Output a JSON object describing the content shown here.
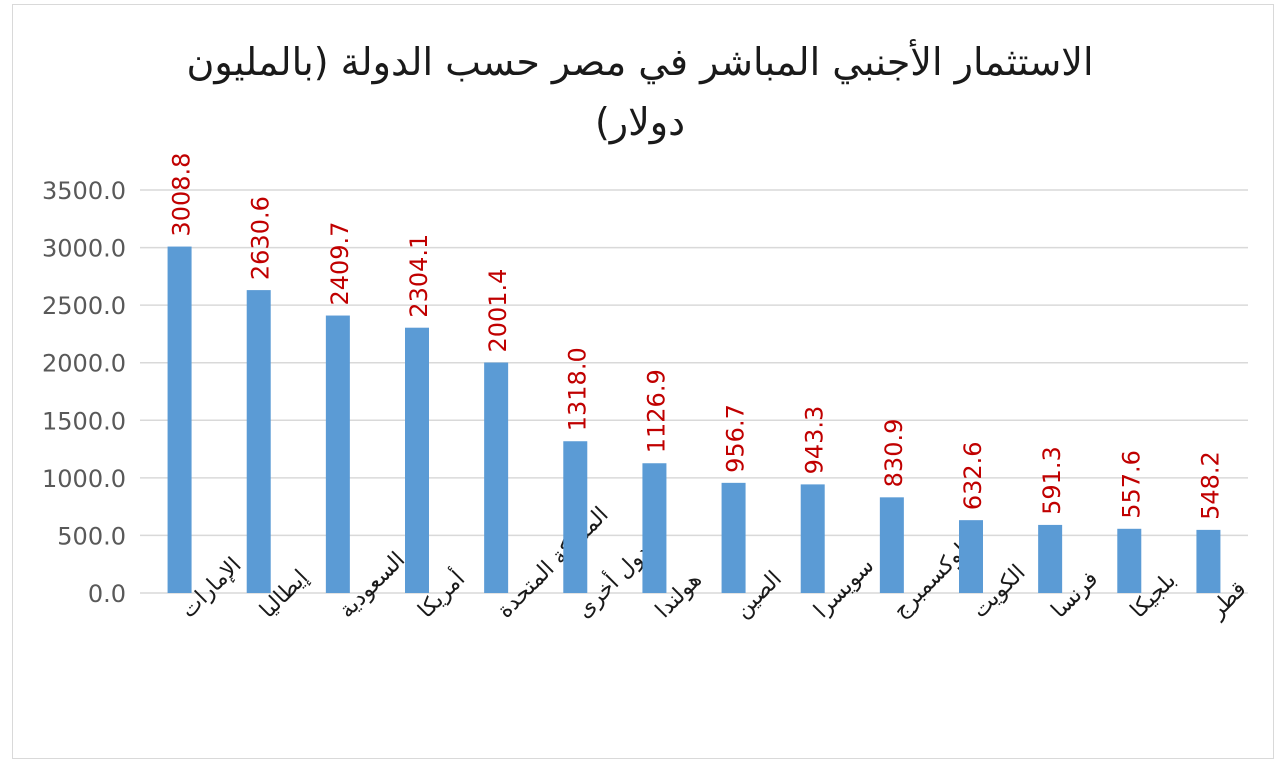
{
  "chart_data": {
    "type": "bar",
    "title_line1": "الاستثمار الأجنبي المباشر في مصر حسب الدولة (بالمليون",
    "title_line2": "دولار)",
    "categories": [
      "الإمارات",
      "إيطاليا",
      "السعودية",
      "أمريكا",
      "المملكة المتحدة",
      "دول أخرى",
      "هولندا",
      "الصين",
      "سويسرا",
      "لوكسمبرج",
      "الكويت",
      "فرنسا",
      "بلجيكا",
      "قطر"
    ],
    "values": [
      3008.8,
      2630.6,
      2409.7,
      2304.1,
      2001.4,
      1318.0,
      1126.9,
      956.7,
      943.3,
      830.9,
      632.6,
      591.3,
      557.6,
      548.2
    ],
    "value_labels": [
      "3008.8",
      "2630.6",
      "2409.7",
      "2304.1",
      "2001.4",
      "1318.0",
      "1126.9",
      "956.7",
      "943.3",
      "830.9",
      "632.6",
      "591.3",
      "557.6",
      "548.2"
    ],
    "ylim": [
      0,
      3500
    ],
    "y_ticks": [
      "0.0",
      "500.0",
      "1000.0",
      "1500.0",
      "2000.0",
      "2500.0",
      "3000.0",
      "3500.0"
    ],
    "grid": true,
    "bar_color": "#5b9bd5",
    "label_color": "#c00000",
    "axis_text_color": "#595959",
    "grid_color": "#d9d9d9"
  }
}
